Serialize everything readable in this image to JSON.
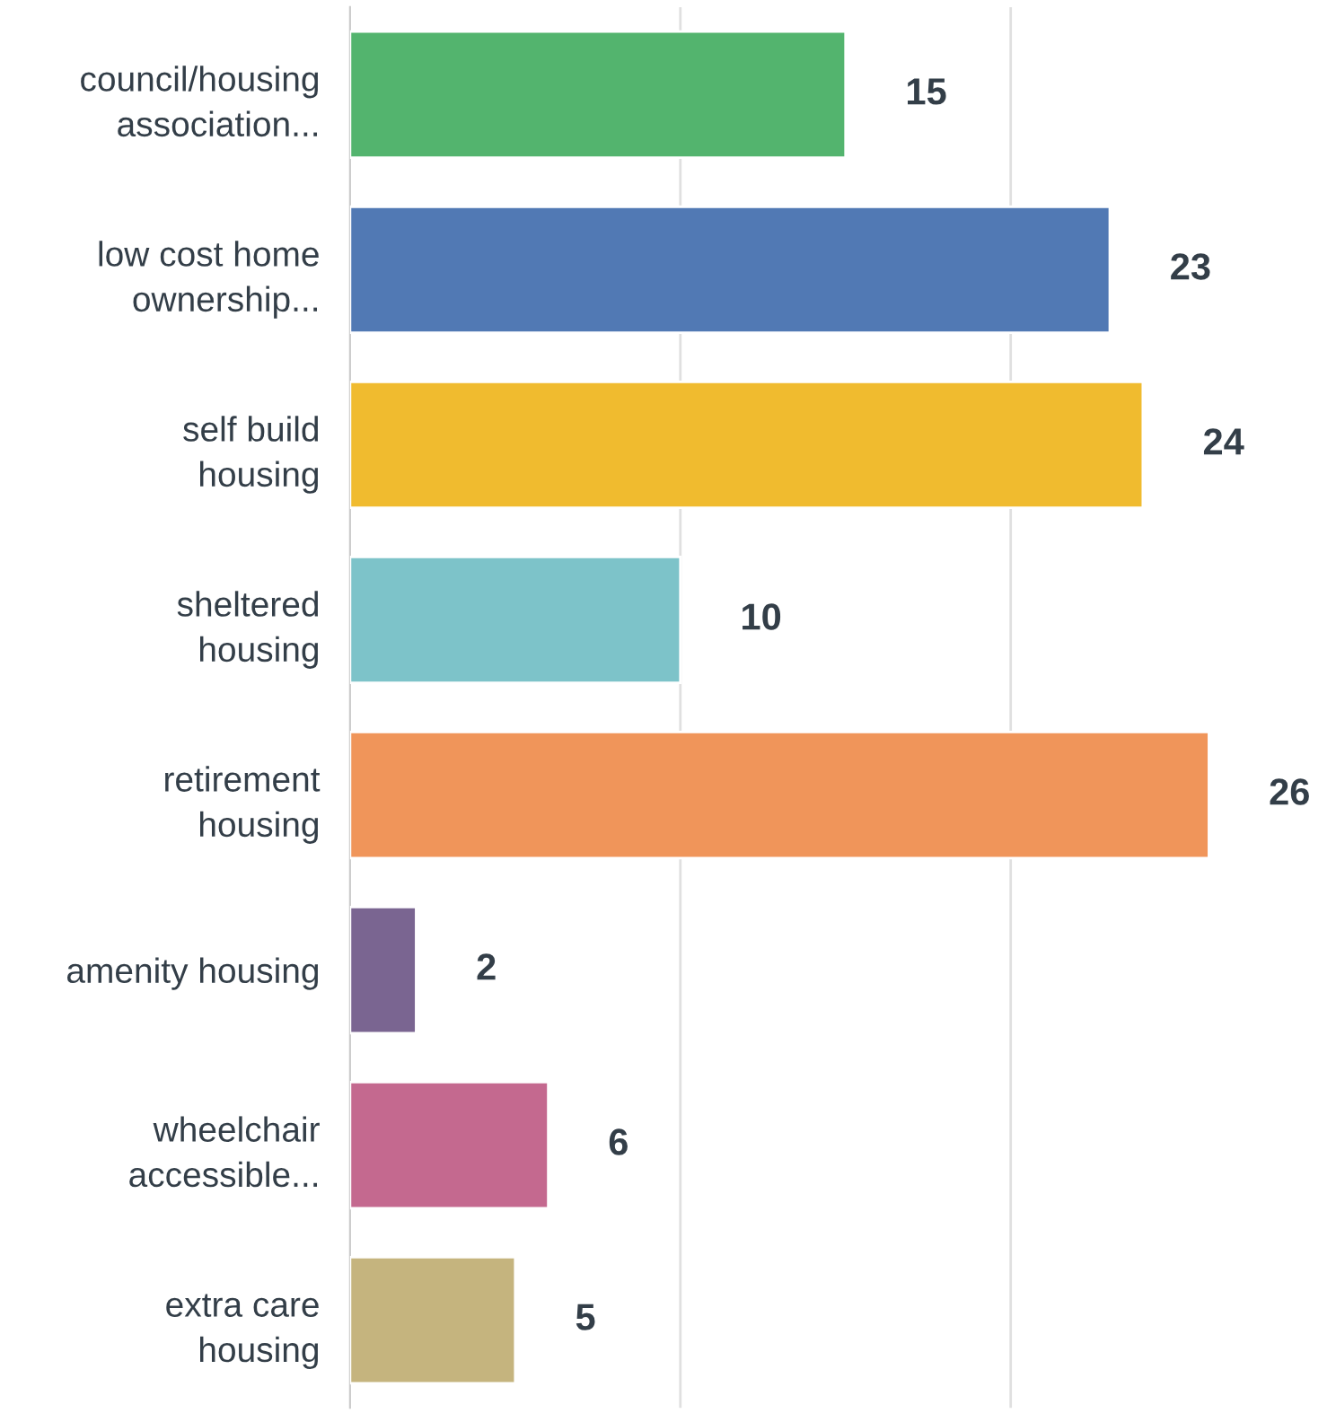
{
  "chart_data": {
    "type": "bar",
    "orientation": "horizontal",
    "categories": [
      "council/housing\nassociation...",
      "low cost home\nownership...",
      "self build\nhousing",
      "sheltered\nhousing",
      "retirement\nhousing",
      "amenity housing",
      "wheelchair\naccessible...",
      "extra care\nhousing"
    ],
    "values": [
      15,
      23,
      24,
      10,
      26,
      2,
      6,
      5
    ],
    "colors": [
      "#53b46e",
      "#5179b4",
      "#f0bb2f",
      "#7dc3c9",
      "#f0955a",
      "#7a6591",
      "#c4698f",
      "#c5b47e"
    ],
    "ref_lines": [
      {
        "axis": "x",
        "value": 10,
        "color": "#e0e0e0"
      },
      {
        "axis": "x",
        "value": 20,
        "color": "#e0e0e0"
      }
    ],
    "tick_labels": "y",
    "data_labels": true
  }
}
